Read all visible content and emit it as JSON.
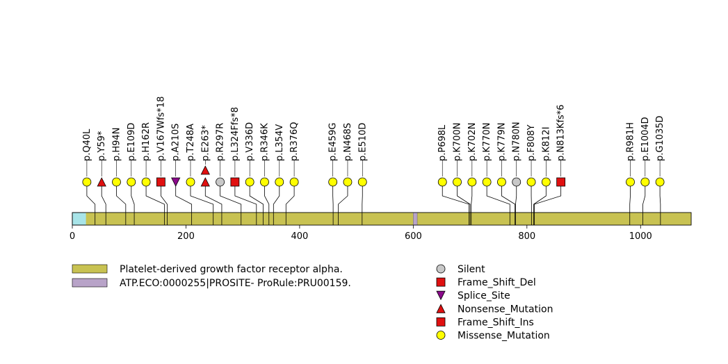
{
  "chart_data": {
    "type": "lollipop",
    "protein_length": 1089,
    "x_axis": {
      "ticks": [
        0,
        200,
        400,
        600,
        800,
        1000
      ]
    },
    "domains": [
      {
        "name": "Platelet-derived growth factor receptor alpha.",
        "start": 24,
        "end": 1089,
        "color": "#c8c252"
      },
      {
        "name": "ATP.ECO:0000255|PROSITE- ProRule:PRU00159.",
        "start": 600,
        "end": 607,
        "color": "#b8a3c8"
      }
    ],
    "uncovered_color": "#a8e4e8",
    "mutation_types": [
      {
        "name": "Silent",
        "shape": "circle",
        "color": "#c8c8c8"
      },
      {
        "name": "Frame_Shift_Del",
        "shape": "square",
        "color": "#e01010"
      },
      {
        "name": "Splice_Site",
        "shape": "triangle-down",
        "color": "#8b0a8b"
      },
      {
        "name": "Nonsense_Mutation",
        "shape": "triangle-up",
        "color": "#e01010"
      },
      {
        "name": "Frame_Shift_Ins",
        "shape": "square",
        "color": "#e01010"
      },
      {
        "name": "Missense_Mutation",
        "shape": "circle",
        "color": "#ffff00"
      }
    ],
    "mutations": [
      {
        "label": "p.Q40L",
        "pos": 40,
        "type": "Missense_Mutation"
      },
      {
        "label": "p.Y59*",
        "pos": 59,
        "type": "Nonsense_Mutation"
      },
      {
        "label": "p.H94N",
        "pos": 94,
        "type": "Missense_Mutation"
      },
      {
        "label": "p.E109D",
        "pos": 109,
        "type": "Missense_Mutation"
      },
      {
        "label": "p.H162R",
        "pos": 162,
        "type": "Missense_Mutation"
      },
      {
        "label": "p.V167Wfs*18",
        "pos": 167,
        "type": "Frame_Shift_Del"
      },
      {
        "label": "p.A210S",
        "pos": 210,
        "type": "Splice_Site"
      },
      {
        "label": "p.T248A",
        "pos": 248,
        "type": "Missense_Mutation"
      },
      {
        "label": "p.E263*",
        "pos": 263,
        "type": "Nonsense_Mutation",
        "count": 2
      },
      {
        "label": "p.R297R",
        "pos": 297,
        "type": "Silent"
      },
      {
        "label": "p.L324Ffs*8",
        "pos": 324,
        "type": "Frame_Shift_Del"
      },
      {
        "label": "p.V336D",
        "pos": 336,
        "type": "Missense_Mutation"
      },
      {
        "label": "p.R346K",
        "pos": 346,
        "type": "Missense_Mutation"
      },
      {
        "label": "p.L354V",
        "pos": 354,
        "type": "Missense_Mutation"
      },
      {
        "label": "p.R376Q",
        "pos": 376,
        "type": "Missense_Mutation"
      },
      {
        "label": "p.E459G",
        "pos": 459,
        "type": "Missense_Mutation"
      },
      {
        "label": "p.N468S",
        "pos": 468,
        "type": "Missense_Mutation"
      },
      {
        "label": "p.E510D",
        "pos": 510,
        "type": "Missense_Mutation"
      },
      {
        "label": "p.P698L",
        "pos": 698,
        "type": "Missense_Mutation"
      },
      {
        "label": "p.K700N",
        "pos": 700,
        "type": "Missense_Mutation"
      },
      {
        "label": "p.K702N",
        "pos": 702,
        "type": "Missense_Mutation"
      },
      {
        "label": "p.K770N",
        "pos": 770,
        "type": "Missense_Mutation"
      },
      {
        "label": "p.K779N",
        "pos": 779,
        "type": "Missense_Mutation"
      },
      {
        "label": "p.N780N",
        "pos": 780,
        "type": "Silent"
      },
      {
        "label": "p.F808Y",
        "pos": 808,
        "type": "Missense_Mutation"
      },
      {
        "label": "p.K812I",
        "pos": 812,
        "type": "Missense_Mutation"
      },
      {
        "label": "p.N813Kfs*6",
        "pos": 813,
        "type": "Frame_Shift_Ins"
      },
      {
        "label": "p.R981H",
        "pos": 981,
        "type": "Missense_Mutation"
      },
      {
        "label": "p.E1004D",
        "pos": 1004,
        "type": "Missense_Mutation"
      },
      {
        "label": "p.G1035D",
        "pos": 1035,
        "type": "Missense_Mutation"
      }
    ]
  }
}
